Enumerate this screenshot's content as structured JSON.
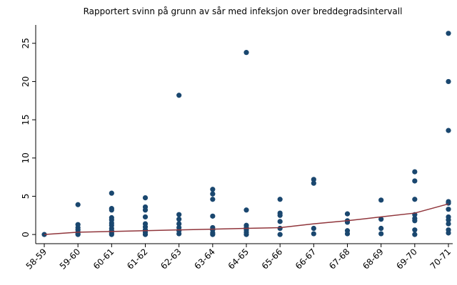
{
  "chart_data": {
    "type": "scatter",
    "title": "Rapportert svinn på grunn av sår med infeksjon over breddegradsintervall",
    "categories": [
      "58-59",
      "59-60",
      "60-61",
      "61-62",
      "62-63",
      "63-64",
      "64-65",
      "65-66",
      "66-67",
      "67-68",
      "68-69",
      "69-70",
      "70-71"
    ],
    "series": [
      {
        "type": "scatter",
        "color": "#1a476f",
        "values": [
          [
            0
          ],
          [
            3.9,
            1.3,
            0.9,
            0.6,
            0.3,
            0.1,
            0
          ],
          [
            5.4,
            3.4,
            3.2,
            2.2,
            1.9,
            1.5,
            1.2,
            0.8,
            0.5,
            0.2,
            0
          ],
          [
            4.8,
            3.6,
            3.2,
            2.3,
            1.4,
            1.0,
            0.6,
            0.3,
            0
          ],
          [
            18.2,
            2.6,
            2.0,
            1.4,
            0.9,
            0.5,
            0.1
          ],
          [
            5.9,
            5.3,
            4.6,
            2.4,
            0.9,
            0.6,
            0.2,
            0
          ],
          [
            23.8,
            3.2,
            1.2,
            0.9,
            0.6,
            0.3,
            0
          ],
          [
            4.6,
            2.8,
            2.5,
            1.7,
            0.8,
            0
          ],
          [
            7.2,
            6.7,
            0.8,
            0.1
          ],
          [
            2.7,
            1.8,
            1.6,
            0.5,
            0.1
          ],
          [
            4.5,
            2.0,
            0.8,
            0.1
          ],
          [
            8.2,
            7.0,
            4.6,
            2.6,
            2.1,
            1.8,
            0.6,
            0
          ],
          [
            26.3,
            20.0,
            13.6,
            4.3,
            4.1,
            3.3,
            2.3,
            1.9,
            1.4,
            0.6,
            0.2
          ]
        ]
      },
      {
        "type": "line",
        "color": "#90353b",
        "values": [
          0,
          0.3,
          0.4,
          0.5,
          0.6,
          0.7,
          0.8,
          0.9,
          1.4,
          1.8,
          2.3,
          2.8,
          4.0
        ]
      }
    ],
    "ylim": [
      -1.2,
      27.4
    ],
    "yticks": [
      0,
      5,
      10,
      15,
      20,
      25
    ],
    "grid": false
  }
}
